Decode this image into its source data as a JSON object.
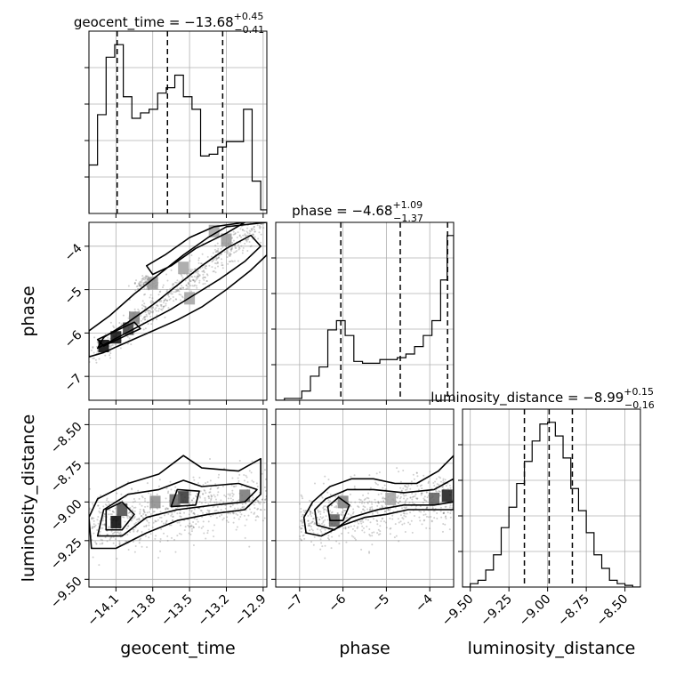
{
  "chart_data": {
    "type": "corner",
    "parameters": [
      "geocent_time",
      "phase",
      "luminosity_distance"
    ],
    "titles": [
      {
        "name": "geocent_time",
        "median": "−13.68",
        "plus": "+0.45",
        "minus": "−0.41"
      },
      {
        "name": "phase",
        "median": "−4.68",
        "plus": "+1.09",
        "minus": "−1.37"
      },
      {
        "name": "luminosity_distance",
        "median": "−8.99",
        "plus": "+0.15",
        "minus": "−0.16"
      }
    ],
    "axis_labels": {
      "x": [
        "geocent_time",
        "phase",
        "luminosity_distance"
      ],
      "y": [
        "phase",
        "luminosity_distance"
      ]
    },
    "ranges": {
      "geocent_time": [
        -14.32,
        -12.87
      ],
      "phase": [
        -7.55,
        -3.45
      ],
      "luminosity_distance": [
        -9.55,
        -8.4
      ]
    },
    "ticks": {
      "geocent_time": [
        {
          "v": -14.1,
          "l": "−14.1"
        },
        {
          "v": -13.8,
          "l": "−13.8"
        },
        {
          "v": -13.5,
          "l": "−13.5"
        },
        {
          "v": -13.2,
          "l": "−13.2"
        },
        {
          "v": -12.9,
          "l": "−12.9"
        }
      ],
      "phase_x": [
        {
          "v": -7,
          "l": "−7"
        },
        {
          "v": -6,
          "l": "−6"
        },
        {
          "v": -5,
          "l": "−5"
        },
        {
          "v": -4,
          "l": "−4"
        }
      ],
      "phase_y": [
        {
          "v": -4,
          "l": "−4"
        },
        {
          "v": -5,
          "l": "−5"
        },
        {
          "v": -6,
          "l": "−6"
        },
        {
          "v": -7,
          "l": "−7"
        }
      ],
      "luminosity_distance_x": [
        {
          "v": -9.5,
          "l": "−9.50"
        },
        {
          "v": -9.25,
          "l": "−9.25"
        },
        {
          "v": -9.0,
          "l": "−9.00"
        },
        {
          "v": -8.75,
          "l": "−8.75"
        },
        {
          "v": -8.5,
          "l": "−8.50"
        }
      ],
      "luminosity_distance_y": [
        {
          "v": -8.5,
          "l": "−8.50"
        },
        {
          "v": -8.75,
          "l": "−8.75"
        },
        {
          "v": -9.0,
          "l": "−9.00"
        },
        {
          "v": -9.25,
          "l": "−9.25"
        },
        {
          "v": -9.5,
          "l": "−9.50"
        }
      ]
    },
    "quantiles": {
      "geocent_time": [
        -14.09,
        -13.68,
        -13.23
      ],
      "phase": [
        -6.05,
        -4.68,
        -3.59
      ],
      "luminosity_distance": [
        -9.15,
        -8.99,
        -8.84
      ]
    },
    "histograms": {
      "geocent_time": {
        "edges": [
          -14.32,
          -14.25,
          -14.18,
          -14.11,
          -14.04,
          -13.97,
          -13.9,
          -13.83,
          -13.76,
          -13.69,
          -13.62,
          -13.55,
          -13.48,
          -13.41,
          -13.34,
          -13.27,
          -13.2,
          -13.13,
          -13.06,
          -12.99,
          -12.92,
          -12.87
        ],
        "counts": [
          0.27,
          0.55,
          0.87,
          0.94,
          0.65,
          0.53,
          0.56,
          0.58,
          0.67,
          0.7,
          0.77,
          0.65,
          0.58,
          0.32,
          0.33,
          0.37,
          0.4,
          0.4,
          0.58,
          0.18,
          0.02
        ]
      },
      "phase": {
        "edges": [
          -7.55,
          -7.35,
          -7.15,
          -6.95,
          -6.75,
          -6.55,
          -6.35,
          -6.15,
          -5.95,
          -5.75,
          -5.55,
          -5.35,
          -5.15,
          -4.95,
          -4.75,
          -4.55,
          -4.35,
          -4.15,
          -3.95,
          -3.75,
          -3.6,
          -3.45
        ],
        "counts": [
          0,
          0.01,
          0.01,
          0.05,
          0.13,
          0.18,
          0.38,
          0.43,
          0.35,
          0.21,
          0.2,
          0.2,
          0.22,
          0.22,
          0.23,
          0.25,
          0.29,
          0.35,
          0.43,
          0.65,
          0.89
        ]
      },
      "luminosity_distance": {
        "edges": [
          -9.55,
          -9.5,
          -9.45,
          -9.4,
          -9.35,
          -9.3,
          -9.25,
          -9.2,
          -9.15,
          -9.1,
          -9.05,
          -9.0,
          -8.95,
          -8.9,
          -8.85,
          -8.8,
          -8.75,
          -8.7,
          -8.65,
          -8.6,
          -8.55,
          -8.5,
          -8.45,
          -8.4
        ],
        "counts": [
          0,
          0.02,
          0.04,
          0.1,
          0.19,
          0.35,
          0.47,
          0.61,
          0.74,
          0.86,
          0.96,
          0.97,
          0.89,
          0.76,
          0.58,
          0.45,
          0.32,
          0.19,
          0.11,
          0.04,
          0.02,
          0.01,
          0.0
        ]
      }
    },
    "density_2d": {
      "phase_vs_geocent_time": [
        {
          "x": -14.2,
          "y": -6.3,
          "level": 1.0
        },
        {
          "x": -14.1,
          "y": -6.1,
          "level": 0.95
        },
        {
          "x": -14.0,
          "y": -5.9,
          "level": 0.75
        },
        {
          "x": -13.95,
          "y": -5.65,
          "level": 0.45
        },
        {
          "x": -13.8,
          "y": -4.85,
          "level": 0.35
        },
        {
          "x": -13.5,
          "y": -5.2,
          "level": 0.3
        },
        {
          "x": -13.55,
          "y": -4.5,
          "level": 0.3
        },
        {
          "x": -13.2,
          "y": -3.85,
          "level": 0.35
        },
        {
          "x": -13.3,
          "y": -3.65,
          "level": 0.3
        }
      ],
      "luminosity_distance_vs_geocent_time": [
        {
          "x": -14.1,
          "y": -9.13,
          "level": 1.0
        },
        {
          "x": -14.05,
          "y": -9.05,
          "level": 0.7
        },
        {
          "x": -13.55,
          "y": -8.97,
          "level": 0.8
        },
        {
          "x": -13.62,
          "y": -8.99,
          "level": 0.55
        },
        {
          "x": -13.05,
          "y": -8.96,
          "level": 0.5
        },
        {
          "x": -13.78,
          "y": -9.0,
          "level": 0.4
        }
      ],
      "luminosity_distance_vs_phase": [
        {
          "x": -6.2,
          "y": -9.12,
          "level": 0.6
        },
        {
          "x": -6.0,
          "y": -9.0,
          "level": 0.45
        },
        {
          "x": -3.6,
          "y": -8.96,
          "level": 0.9
        },
        {
          "x": -3.9,
          "y": -8.98,
          "level": 0.6
        },
        {
          "x": -4.9,
          "y": -8.98,
          "level": 0.3
        }
      ]
    },
    "contours": {
      "phase_vs_geocent_time": [
        [
          [
            -14.32,
            -6.55
          ],
          [
            -14.2,
            -6.45
          ],
          [
            -14.0,
            -6.2
          ],
          [
            -13.8,
            -5.95
          ],
          [
            -13.6,
            -5.7
          ],
          [
            -13.4,
            -5.4
          ],
          [
            -13.2,
            -5.0
          ],
          [
            -13.0,
            -4.55
          ],
          [
            -12.87,
            -4.2
          ],
          [
            -12.87,
            -3.45
          ],
          [
            -13.2,
            -3.55
          ],
          [
            -13.35,
            -3.8
          ],
          [
            -13.55,
            -4.2
          ],
          [
            -13.75,
            -4.65
          ],
          [
            -13.95,
            -5.1
          ],
          [
            -14.15,
            -5.6
          ],
          [
            -14.32,
            -5.95
          ]
        ],
        [
          [
            -14.25,
            -6.35
          ],
          [
            -14.05,
            -6.05
          ],
          [
            -13.85,
            -5.75
          ],
          [
            -13.65,
            -5.45
          ],
          [
            -13.45,
            -5.1
          ],
          [
            -13.25,
            -4.75
          ],
          [
            -13.05,
            -4.35
          ],
          [
            -12.92,
            -4.0
          ],
          [
            -13.0,
            -3.75
          ],
          [
            -13.2,
            -4.05
          ],
          [
            -13.4,
            -4.45
          ],
          [
            -13.6,
            -4.9
          ],
          [
            -13.8,
            -5.35
          ],
          [
            -14.0,
            -5.75
          ],
          [
            -14.2,
            -6.1
          ]
        ],
        [
          [
            -14.2,
            -6.3
          ],
          [
            -14.05,
            -6.1
          ],
          [
            -13.9,
            -5.9
          ],
          [
            -13.95,
            -5.75
          ],
          [
            -14.1,
            -5.95
          ],
          [
            -14.25,
            -6.15
          ]
        ],
        [
          [
            -13.85,
            -4.45
          ],
          [
            -13.7,
            -4.2
          ],
          [
            -13.5,
            -3.8
          ],
          [
            -13.3,
            -3.55
          ],
          [
            -13.05,
            -3.45
          ],
          [
            -13.2,
            -3.7
          ],
          [
            -13.45,
            -4.05
          ],
          [
            -13.65,
            -4.45
          ],
          [
            -13.8,
            -4.65
          ]
        ]
      ],
      "luminosity_distance_vs_geocent_time": [
        [
          [
            -14.3,
            -9.3
          ],
          [
            -14.1,
            -9.3
          ],
          [
            -13.85,
            -9.2
          ],
          [
            -13.6,
            -9.12
          ],
          [
            -13.35,
            -9.08
          ],
          [
            -13.05,
            -9.05
          ],
          [
            -12.92,
            -8.95
          ],
          [
            -12.92,
            -8.72
          ],
          [
            -13.1,
            -8.8
          ],
          [
            -13.4,
            -8.78
          ],
          [
            -13.55,
            -8.7
          ],
          [
            -13.75,
            -8.82
          ],
          [
            -14.0,
            -8.88
          ],
          [
            -14.25,
            -8.98
          ],
          [
            -14.32,
            -9.1
          ]
        ],
        [
          [
            -14.25,
            -9.22
          ],
          [
            -14.05,
            -9.22
          ],
          [
            -13.85,
            -9.1
          ],
          [
            -13.6,
            -9.05
          ],
          [
            -13.3,
            -9.02
          ],
          [
            -13.05,
            -9.0
          ],
          [
            -12.95,
            -8.92
          ],
          [
            -13.1,
            -8.88
          ],
          [
            -13.4,
            -8.9
          ],
          [
            -13.55,
            -8.86
          ],
          [
            -13.75,
            -8.92
          ],
          [
            -14.0,
            -8.95
          ],
          [
            -14.2,
            -9.05
          ]
        ],
        [
          [
            -14.18,
            -9.18
          ],
          [
            -14.05,
            -9.18
          ],
          [
            -13.95,
            -9.08
          ],
          [
            -14.05,
            -9.0
          ],
          [
            -14.18,
            -9.05
          ]
        ],
        [
          [
            -13.65,
            -9.03
          ],
          [
            -13.45,
            -9.02
          ],
          [
            -13.42,
            -8.93
          ],
          [
            -13.6,
            -8.92
          ]
        ]
      ],
      "luminosity_distance_vs_phase": [
        [
          [
            -6.85,
            -9.2
          ],
          [
            -6.5,
            -9.22
          ],
          [
            -6.0,
            -9.15
          ],
          [
            -5.5,
            -9.1
          ],
          [
            -5.0,
            -9.08
          ],
          [
            -4.5,
            -9.05
          ],
          [
            -3.95,
            -9.05
          ],
          [
            -3.45,
            -9.05
          ],
          [
            -3.45,
            -8.7
          ],
          [
            -3.8,
            -8.8
          ],
          [
            -4.3,
            -8.88
          ],
          [
            -4.8,
            -8.88
          ],
          [
            -5.3,
            -8.85
          ],
          [
            -5.8,
            -8.85
          ],
          [
            -6.3,
            -8.9
          ],
          [
            -6.7,
            -9.0
          ],
          [
            -6.9,
            -9.1
          ]
        ],
        [
          [
            -6.6,
            -9.15
          ],
          [
            -6.2,
            -9.18
          ],
          [
            -5.8,
            -9.1
          ],
          [
            -5.2,
            -9.05
          ],
          [
            -4.6,
            -9.02
          ],
          [
            -3.9,
            -9.02
          ],
          [
            -3.45,
            -9.0
          ],
          [
            -3.45,
            -8.85
          ],
          [
            -3.9,
            -8.92
          ],
          [
            -4.6,
            -8.94
          ],
          [
            -5.3,
            -8.92
          ],
          [
            -5.9,
            -8.92
          ],
          [
            -6.4,
            -8.98
          ],
          [
            -6.65,
            -9.05
          ]
        ],
        [
          [
            -6.3,
            -9.12
          ],
          [
            -6.0,
            -9.12
          ],
          [
            -5.85,
            -9.02
          ],
          [
            -6.1,
            -8.97
          ],
          [
            -6.35,
            -9.03
          ]
        ]
      ]
    }
  }
}
